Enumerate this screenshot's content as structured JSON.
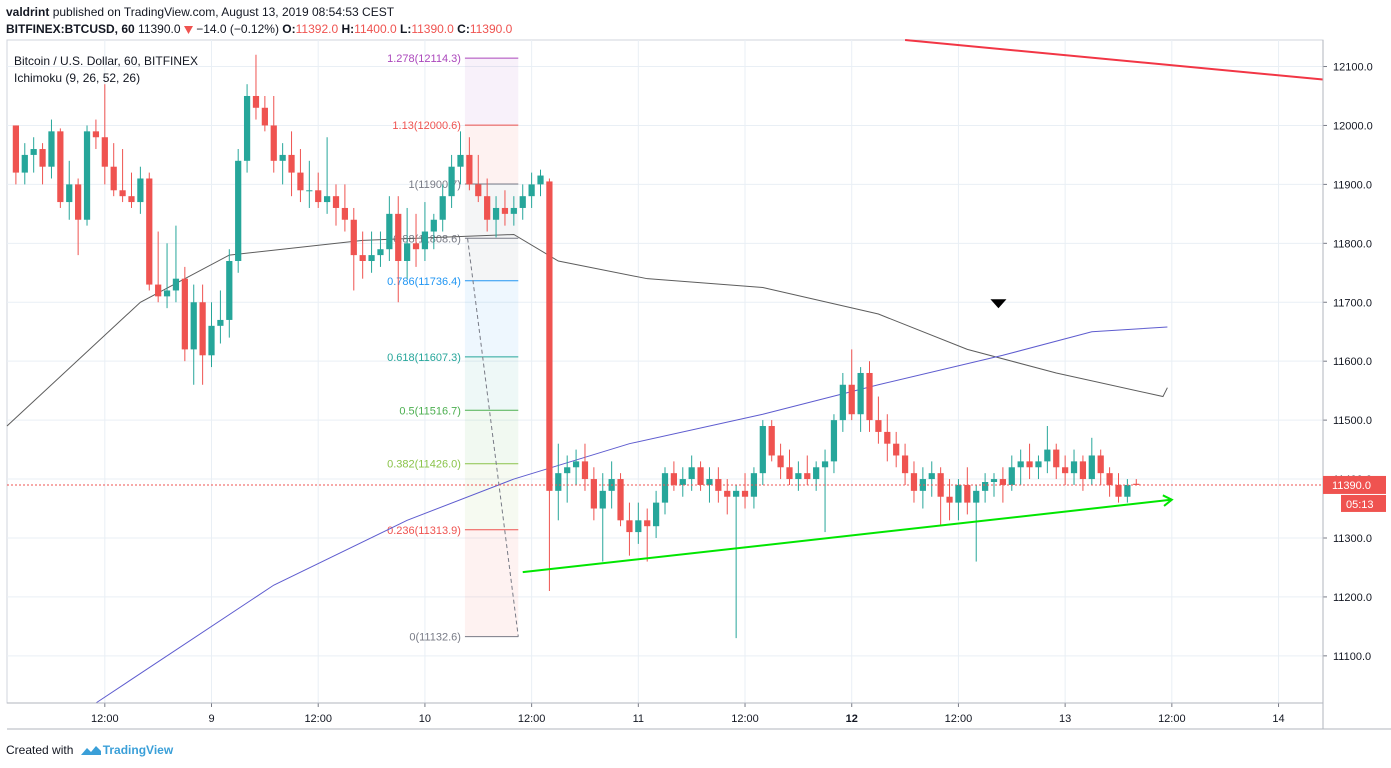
{
  "header": {
    "author": "valdrint",
    "published": "published on TradingView.com, August 13, 2019 08:54:53 CEST",
    "symbol": "BITFINEX:BTCUSD, 60",
    "last": "11390.0",
    "change": "−14.0 (−0.12%)",
    "o_label": "O:",
    "o": "11392.0",
    "h_label": "H:",
    "h": "11400.0",
    "l_label": "L:",
    "l": "11390.0",
    "c_label": "C:",
    "c": "11390.0",
    "down_arrow_color": "#ef5350"
  },
  "legend": {
    "title": "Bitcoin / U.S. Dollar, 60, BITFINEX",
    "indicator": "Ichimoku (9, 26, 52, 26)"
  },
  "footer": {
    "created_with": "Created with",
    "brand": "TradingView"
  },
  "chart_data": {
    "type": "candlestick",
    "price_axis": {
      "ticks": [
        "12100.0",
        "12000.0",
        "11900.0",
        "11800.0",
        "11700.0",
        "11600.0",
        "11500.0",
        "11400.0",
        "11300.0",
        "11200.0",
        "11100.0"
      ],
      "tick_values": [
        12100,
        12000,
        11900,
        11800,
        11700,
        11600,
        11500,
        11400,
        11300,
        11200,
        11100
      ],
      "range": [
        11020,
        12145
      ],
      "last_price_label": "11390.0",
      "last_price": 11390,
      "countdown_label": "05:13"
    },
    "time_axis": {
      "labels": [
        "12:00",
        "9",
        "12:00",
        "10",
        "12:00",
        "11",
        "12:00",
        "12",
        "12:00",
        "13",
        "12:00",
        "14"
      ],
      "bold": [
        false,
        false,
        false,
        false,
        false,
        false,
        false,
        true,
        false,
        false,
        false,
        false
      ],
      "range_hours": [
        0,
        148
      ],
      "label_hours": [
        11,
        23,
        35,
        47,
        59,
        71,
        83,
        95,
        107,
        119,
        131,
        143
      ]
    },
    "fibonacci": {
      "levels": [
        {
          "ratio": "1.278",
          "price": "12114.3",
          "value": 12114.3,
          "color": "#ab47bc"
        },
        {
          "ratio": "1.13",
          "price": "12000.6",
          "value": 12000.6,
          "color": "#ef5350"
        },
        {
          "ratio": "1",
          "price": "11900.7",
          "value": 11900.7,
          "color": "#787b86"
        },
        {
          "ratio": "0.88",
          "price": "11808.6",
          "value": 11808.6,
          "color": "#787b86"
        },
        {
          "ratio": "0.786",
          "price": "11736.4",
          "value": 11736.4,
          "color": "#2196f3"
        },
        {
          "ratio": "0.618",
          "price": "11607.3",
          "value": 11607.3,
          "color": "#26a69a"
        },
        {
          "ratio": "0.5",
          "price": "11516.7",
          "value": 11516.7,
          "color": "#4caf50"
        },
        {
          "ratio": "0.382",
          "price": "11426.0",
          "value": 11426.0,
          "color": "#8bc34a"
        },
        {
          "ratio": "0.236",
          "price": "11313.9",
          "value": 11313.9,
          "color": "#ef5350"
        },
        {
          "ratio": "0",
          "price": "11132.6",
          "value": 11132.6,
          "color": "#787b86"
        }
      ],
      "start_hour": 51.5,
      "end_hour": 57.5
    },
    "candles_hourly": [
      [
        12000,
        12000,
        11900,
        11920
      ],
      [
        11920,
        11970,
        11900,
        11950
      ],
      [
        11950,
        11980,
        11920,
        11960
      ],
      [
        11960,
        11970,
        11900,
        11930
      ],
      [
        11930,
        12010,
        11910,
        11990
      ],
      [
        11990,
        11995,
        11860,
        11870
      ],
      [
        11870,
        11940,
        11840,
        11900
      ],
      [
        11900,
        11910,
        11780,
        11840
      ],
      [
        11840,
        12000,
        11830,
        11990
      ],
      [
        11990,
        12010,
        11960,
        11980
      ],
      [
        11980,
        12070,
        11900,
        11930
      ],
      [
        11930,
        11970,
        11880,
        11890
      ],
      [
        11890,
        11960,
        11870,
        11880
      ],
      [
        11880,
        11920,
        11860,
        11870
      ],
      [
        11870,
        11930,
        11850,
        11910
      ],
      [
        11910,
        11920,
        11720,
        11730
      ],
      [
        11730,
        11820,
        11700,
        11710
      ],
      [
        11710,
        11800,
        11690,
        11720
      ],
      [
        11720,
        11830,
        11700,
        11740
      ],
      [
        11740,
        11760,
        11600,
        11620
      ],
      [
        11620,
        11730,
        11560,
        11700
      ],
      [
        11700,
        11730,
        11560,
        11610
      ],
      [
        11610,
        11700,
        11590,
        11660
      ],
      [
        11660,
        11720,
        11630,
        11670
      ],
      [
        11670,
        11790,
        11640,
        11770
      ],
      [
        11770,
        11960,
        11750,
        11940
      ],
      [
        11940,
        12070,
        11920,
        12050
      ],
      [
        12050,
        12120,
        12010,
        12030
      ],
      [
        12030,
        12050,
        11990,
        12000
      ],
      [
        12000,
        12050,
        11920,
        11940
      ],
      [
        11940,
        11970,
        11900,
        11950
      ],
      [
        11950,
        11990,
        11880,
        11920
      ],
      [
        11920,
        11960,
        11870,
        11890
      ],
      [
        11890,
        11940,
        11860,
        11890
      ],
      [
        11890,
        11920,
        11860,
        11870
      ],
      [
        11870,
        11980,
        11850,
        11880
      ],
      [
        11880,
        11900,
        11830,
        11860
      ],
      [
        11860,
        11900,
        11820,
        11840
      ],
      [
        11840,
        11860,
        11720,
        11780
      ],
      [
        11780,
        11820,
        11740,
        11770
      ],
      [
        11770,
        11820,
        11750,
        11780
      ],
      [
        11780,
        11820,
        11760,
        11790
      ],
      [
        11790,
        11880,
        11770,
        11850
      ],
      [
        11850,
        11880,
        11700,
        11770
      ],
      [
        11770,
        11860,
        11740,
        11800
      ],
      [
        11800,
        11850,
        11760,
        11790
      ],
      [
        11790,
        11870,
        11770,
        11820
      ],
      [
        11820,
        11850,
        11790,
        11840
      ],
      [
        11840,
        11900,
        11820,
        11880
      ],
      [
        11880,
        11950,
        11860,
        11930
      ],
      [
        11930,
        11990,
        11900,
        11950
      ],
      [
        11950,
        11980,
        11890,
        11900
      ],
      [
        11900,
        11950,
        11870,
        11880
      ],
      [
        11880,
        11910,
        11820,
        11840
      ],
      [
        11840,
        11880,
        11810,
        11860
      ],
      [
        11860,
        11890,
        11830,
        11850
      ],
      [
        11850,
        11880,
        11830,
        11860
      ],
      [
        11860,
        11900,
        11840,
        11880
      ],
      [
        11880,
        11920,
        11860,
        11900
      ],
      [
        11900,
        11925,
        11880,
        11915
      ],
      [
        11905,
        11910,
        11210,
        11380
      ],
      [
        11380,
        11460,
        11330,
        11410
      ],
      [
        11410,
        11440,
        11360,
        11420
      ],
      [
        11420,
        11450,
        11390,
        11430
      ],
      [
        11430,
        11460,
        11380,
        11400
      ],
      [
        11400,
        11420,
        11330,
        11350
      ],
      [
        11350,
        11410,
        11260,
        11380
      ],
      [
        11380,
        11430,
        11350,
        11400
      ],
      [
        11400,
        11410,
        11320,
        11330
      ],
      [
        11330,
        11360,
        11270,
        11310
      ],
      [
        11310,
        11360,
        11290,
        11330
      ],
      [
        11330,
        11350,
        11260,
        11320
      ],
      [
        11320,
        11380,
        11300,
        11360
      ],
      [
        11360,
        11420,
        11340,
        11410
      ],
      [
        11410,
        11430,
        11380,
        11390
      ],
      [
        11390,
        11420,
        11370,
        11400
      ],
      [
        11400,
        11440,
        11380,
        11420
      ],
      [
        11420,
        11430,
        11380,
        11390
      ],
      [
        11390,
        11420,
        11360,
        11400
      ],
      [
        11400,
        11420,
        11360,
        11380
      ],
      [
        11380,
        11400,
        11340,
        11370
      ],
      [
        11370,
        11390,
        11130,
        11380
      ],
      [
        11380,
        11410,
        11350,
        11370
      ],
      [
        11370,
        11420,
        11350,
        11410
      ],
      [
        11410,
        11500,
        11390,
        11490
      ],
      [
        11490,
        11500,
        11430,
        11440
      ],
      [
        11440,
        11460,
        11400,
        11420
      ],
      [
        11420,
        11450,
        11390,
        11400
      ],
      [
        11400,
        11430,
        11380,
        11410
      ],
      [
        11410,
        11440,
        11390,
        11400
      ],
      [
        11400,
        11430,
        11380,
        11420
      ],
      [
        11420,
        11450,
        11310,
        11430
      ],
      [
        11430,
        11510,
        11410,
        11500
      ],
      [
        11500,
        11580,
        11480,
        11560
      ],
      [
        11560,
        11620,
        11500,
        11510
      ],
      [
        11510,
        11590,
        11480,
        11580
      ],
      [
        11580,
        11600,
        11480,
        11500
      ],
      [
        11500,
        11540,
        11460,
        11480
      ],
      [
        11480,
        11510,
        11430,
        11460
      ],
      [
        11460,
        11480,
        11420,
        11440
      ],
      [
        11440,
        11460,
        11390,
        11410
      ],
      [
        11410,
        11430,
        11360,
        11380
      ],
      [
        11380,
        11420,
        11350,
        11400
      ],
      [
        11400,
        11430,
        11370,
        11410
      ],
      [
        11410,
        11420,
        11320,
        11370
      ],
      [
        11370,
        11400,
        11330,
        11360
      ],
      [
        11360,
        11400,
        11330,
        11390
      ],
      [
        11390,
        11420,
        11340,
        11360
      ],
      [
        11360,
        11390,
        11260,
        11380
      ],
      [
        11380,
        11410,
        11360,
        11395
      ],
      [
        11395,
        11410,
        11370,
        11400
      ],
      [
        11400,
        11420,
        11360,
        11390
      ],
      [
        11390,
        11440,
        11380,
        11420
      ],
      [
        11420,
        11450,
        11390,
        11430
      ],
      [
        11430,
        11460,
        11400,
        11420
      ],
      [
        11420,
        11440,
        11400,
        11430
      ],
      [
        11430,
        11490,
        11410,
        11450
      ],
      [
        11450,
        11460,
        11400,
        11420
      ],
      [
        11420,
        11440,
        11390,
        11410
      ],
      [
        11410,
        11450,
        11390,
        11430
      ],
      [
        11430,
        11440,
        11380,
        11400
      ],
      [
        11400,
        11470,
        11390,
        11440
      ],
      [
        11440,
        11450,
        11390,
        11410
      ],
      [
        11410,
        11420,
        11370,
        11390
      ],
      [
        11390,
        11410,
        11360,
        11370
      ],
      [
        11370,
        11400,
        11360,
        11390
      ],
      [
        11392,
        11400,
        11390,
        11390
      ]
    ],
    "ma_gray": [
      [
        0,
        11490
      ],
      [
        15,
        11700
      ],
      [
        25,
        11780
      ],
      [
        40,
        11805
      ],
      [
        57,
        11815
      ],
      [
        62,
        11770
      ],
      [
        72,
        11740
      ],
      [
        85,
        11725
      ],
      [
        98,
        11680
      ],
      [
        108,
        11620
      ],
      [
        118,
        11580
      ],
      [
        130,
        11540
      ],
      [
        130.5,
        11555
      ]
    ],
    "ma_blue": [
      [
        10,
        11020
      ],
      [
        30,
        11220
      ],
      [
        45,
        11330
      ],
      [
        57,
        11400
      ],
      [
        70,
        11460
      ],
      [
        85,
        11510
      ],
      [
        98,
        11560
      ],
      [
        112,
        11610
      ],
      [
        122,
        11650
      ],
      [
        130.5,
        11658
      ]
    ],
    "trendlines": [
      {
        "name": "resistance",
        "color": "#f23645",
        "from": [
          101,
          12145
        ],
        "to": [
          148,
          12078
        ]
      },
      {
        "name": "support",
        "color": "#00e600",
        "from": [
          58,
          11242
        ],
        "to": [
          131,
          11365
        ],
        "arrow": true
      }
    ],
    "marker": {
      "hour": 111.5,
      "price": 11695
    }
  }
}
